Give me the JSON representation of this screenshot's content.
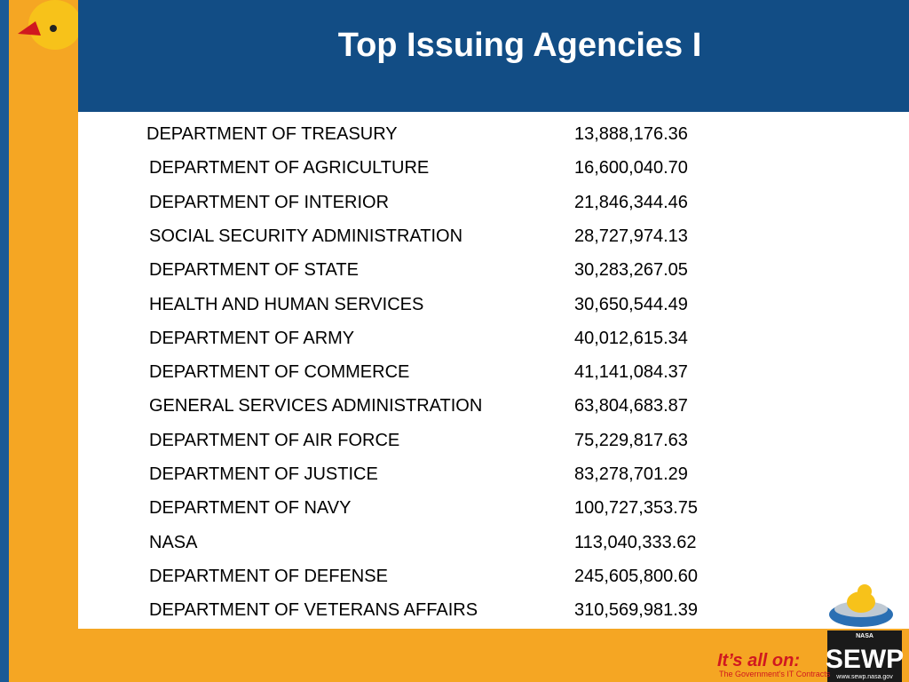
{
  "header": {
    "title": "Top Issuing Agencies I"
  },
  "table": {
    "rows": [
      [
        "DEPARTMENT OF TREASURY",
        "13,888,176.36"
      ],
      [
        "DEPARTMENT OF AGRICULTURE",
        "16,600,040.70"
      ],
      [
        "DEPARTMENT OF INTERIOR",
        "21,846,344.46"
      ],
      [
        "SOCIAL SECURITY ADMINISTRATION",
        "28,727,974.13"
      ],
      [
        "DEPARTMENT OF STATE",
        "30,283,267.05"
      ],
      [
        "HEALTH AND HUMAN SERVICES",
        "30,650,544.49"
      ],
      [
        "DEPARTMENT OF ARMY",
        "40,012,615.34"
      ],
      [
        "DEPARTMENT OF COMMERCE",
        "41,141,084.37"
      ],
      [
        "GENERAL SERVICES ADMINISTRATION",
        "63,804,683.87"
      ],
      [
        "DEPARTMENT OF AIR FORCE",
        "75,229,817.63"
      ],
      [
        "DEPARTMENT OF JUSTICE",
        "83,278,701.29"
      ],
      [
        "DEPARTMENT OF NAVY",
        "100,727,353.75"
      ],
      [
        "NASA",
        "113,040,333.62"
      ],
      [
        "DEPARTMENT OF DEFENSE",
        "245,605,800.60"
      ],
      [
        "DEPARTMENT OF VETERANS AFFAIRS",
        "310,569,981.39"
      ]
    ]
  },
  "footer": {
    "tagline": "It’s all on:",
    "subtagline": "The Government’s IT Contracts",
    "logo": {
      "top": "NASA",
      "name": "SEWP",
      "url": "www.sewp.nasa.gov"
    }
  }
}
